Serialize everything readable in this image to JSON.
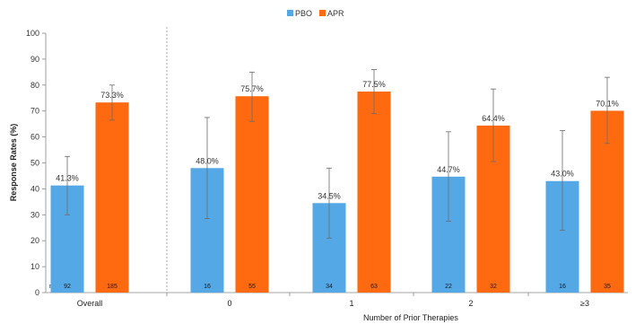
{
  "chart_data": {
    "type": "bar",
    "title": "",
    "xlabel": "Number of Prior Therapies",
    "ylabel": "Response Rates (%)",
    "ylim": [
      0,
      100
    ],
    "yticks": [
      "0",
      "10",
      "20",
      "30",
      "40",
      "50",
      "60",
      "70",
      "80",
      "90",
      "100"
    ],
    "grid": false,
    "legend_position": "top-center",
    "n_label": "n=",
    "categories": [
      "Overall",
      "0",
      "1",
      "2",
      "≥3"
    ],
    "series": [
      {
        "name": "PBO",
        "color": "#55a8e6",
        "values": [
          41.3,
          48.0,
          34.5,
          44.7,
          43.0
        ],
        "value_labels": [
          "41.3%",
          "48.0%",
          "34.5%",
          "44.7%",
          "43.0%"
        ],
        "error_low": [
          30.0,
          28.5,
          21.0,
          27.5,
          24.0
        ],
        "error_high": [
          52.5,
          67.5,
          48.0,
          62.0,
          62.5
        ],
        "n": [
          "92",
          "16",
          "34",
          "22",
          "16"
        ]
      },
      {
        "name": "APR",
        "color": "#ff6a10",
        "values": [
          73.3,
          75.7,
          77.5,
          64.4,
          70.1
        ],
        "value_labels": [
          "73.3%",
          "75.7%",
          "77.5%",
          "64.4%",
          "70.1%"
        ],
        "error_low": [
          66.5,
          66.0,
          69.0,
          50.5,
          57.5
        ],
        "error_high": [
          80.0,
          85.0,
          86.0,
          78.5,
          83.0
        ],
        "n": [
          "185",
          "55",
          "63",
          "32",
          "35"
        ]
      }
    ]
  }
}
